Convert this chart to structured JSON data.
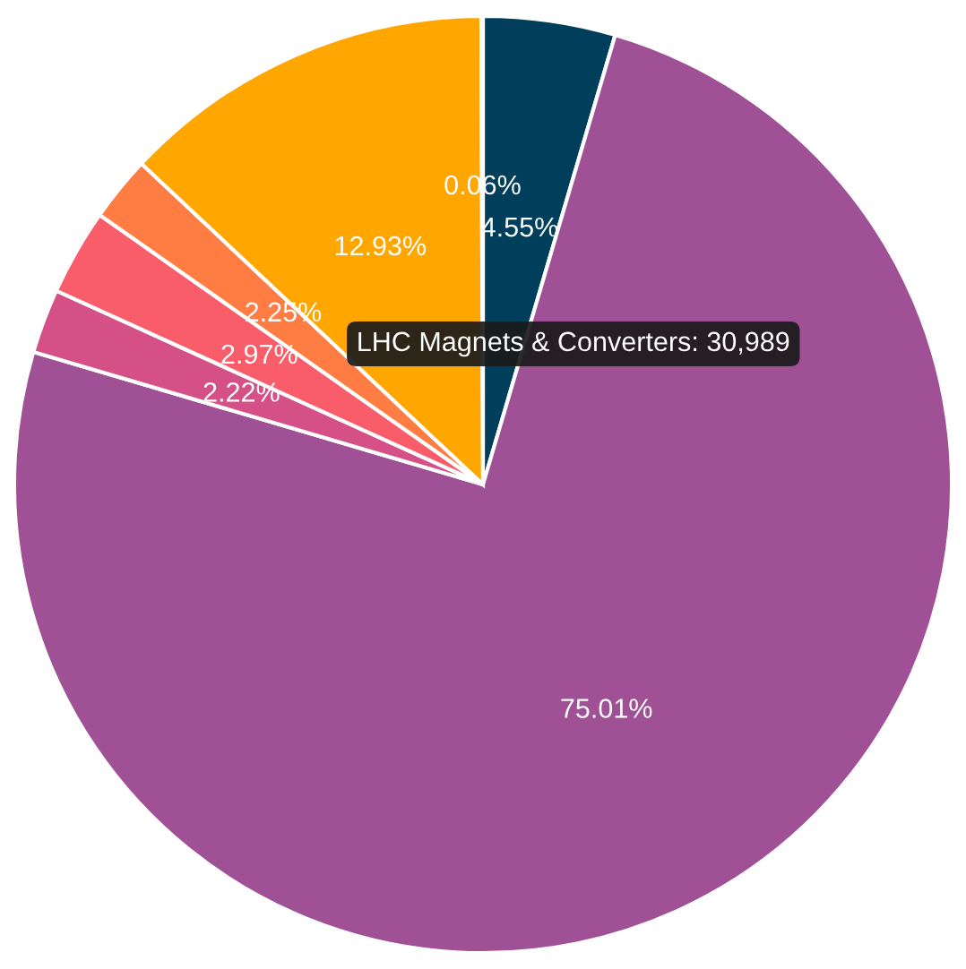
{
  "chart_data": {
    "type": "pie",
    "categories": [
      null,
      null,
      null,
      null,
      null,
      null,
      null
    ],
    "values": [
      4.55,
      75.01,
      2.22,
      2.97,
      2.25,
      12.93,
      0.06
    ],
    "colors": [
      "#003f5c",
      "#a05195",
      "#d45087",
      "#f95d6a",
      "#ff7c43",
      "#ffa600",
      "#665191"
    ],
    "value_labels": [
      "4.55%",
      "75.01%",
      "2.22%",
      "2.97%",
      "2.25%",
      "12.93%",
      "0.06%"
    ],
    "annotations": [
      "LHC Magnets & Converters: 30,989"
    ]
  }
}
